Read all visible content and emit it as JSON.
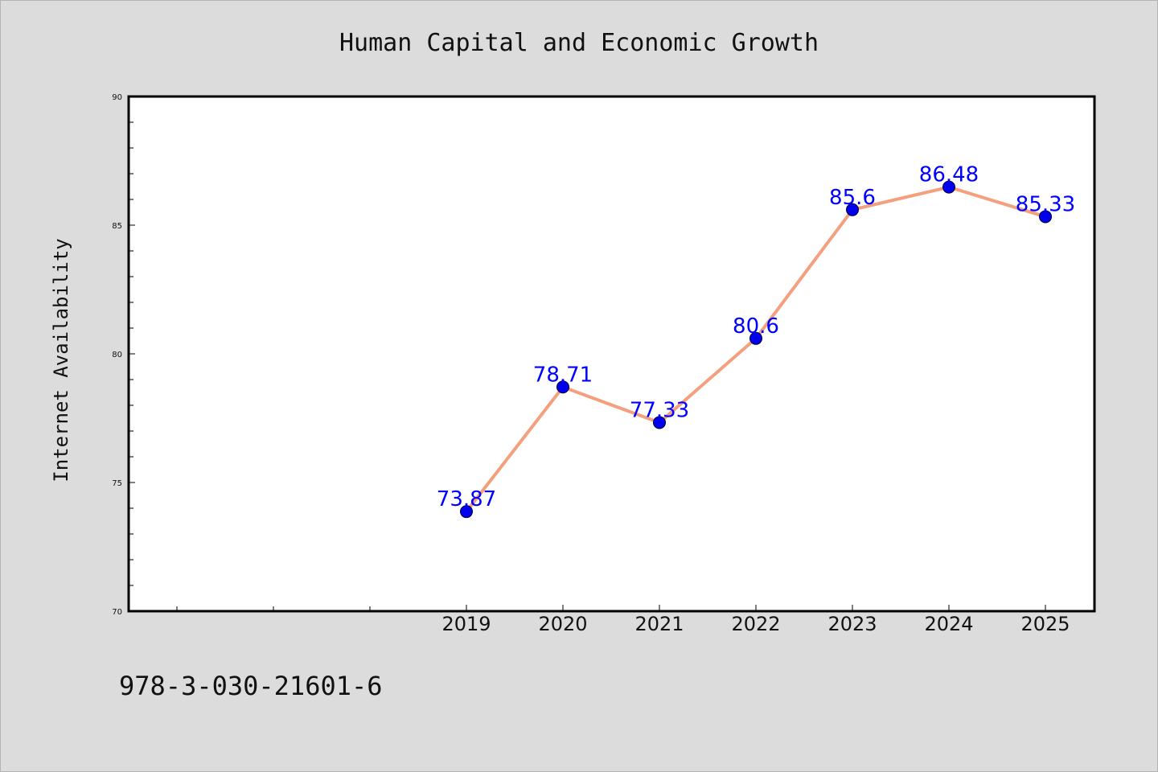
{
  "chart_data": {
    "type": "line",
    "title": "Human Capital and Economic Growth",
    "xlabel": "",
    "ylabel": "Internet Availability",
    "categories": [
      "2019",
      "2020",
      "2021",
      "2022",
      "2023",
      "2024",
      "2025"
    ],
    "series": [
      {
        "values": [
          73.87,
          78.71,
          77.33,
          80.6,
          85.6,
          86.48,
          85.33
        ],
        "labels": [
          "73.87",
          "78.71",
          "77.33",
          "80.6",
          "85.6",
          "86.48",
          "85.33"
        ]
      }
    ],
    "ylim": [
      70,
      90
    ],
    "yticks": [
      "70",
      "75",
      "80",
      "85",
      "90"
    ],
    "grid": false,
    "legend": "none",
    "colors": {
      "line": "#f4a07e",
      "marker": "#0000ee",
      "marker_edge": "#000033",
      "data_label": "#0000ff",
      "background": "#dcdcdc",
      "plot_background": "#ffffff"
    }
  },
  "footer_text": "978-3-030-21601-6"
}
